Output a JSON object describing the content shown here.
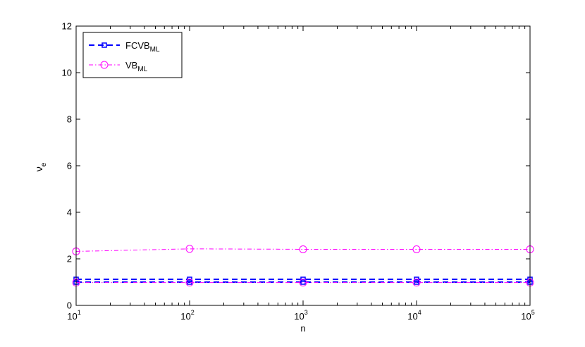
{
  "chart_data": {
    "type": "line",
    "x_scale": "log",
    "xlabel": "n",
    "ylabel": {
      "main": "ν",
      "sub": "e"
    },
    "xlim": [
      10,
      100000
    ],
    "ylim": [
      0,
      12
    ],
    "x_ticks": [
      {
        "base": "10",
        "exp": "1",
        "value": 10
      },
      {
        "base": "10",
        "exp": "2",
        "value": 100
      },
      {
        "base": "10",
        "exp": "3",
        "value": 1000
      },
      {
        "base": "10",
        "exp": "4",
        "value": 10000
      },
      {
        "base": "10",
        "exp": "5",
        "value": 100000
      }
    ],
    "y_ticks": [
      "0",
      "2",
      "4",
      "6",
      "8",
      "10",
      "12"
    ],
    "y_tick_values": [
      0,
      2,
      4,
      6,
      8,
      10,
      12
    ],
    "grid": false,
    "legend_position": "top-left",
    "x": [
      10,
      100,
      1000,
      10000,
      100000
    ],
    "series": [
      {
        "name": "FCVB",
        "name_sub": "ML",
        "color": "#0000ff",
        "line": "dashed",
        "marker": "square",
        "values": [
          1.12,
          1.12,
          1.12,
          1.12,
          1.12
        ]
      },
      {
        "name": "VB",
        "name_sub": "ML",
        "color": "#ff00ff",
        "line": "dashdot",
        "marker": "circle",
        "values": [
          2.32,
          2.43,
          2.41,
          2.41,
          2.41
        ]
      },
      {
        "color": "#0000ff",
        "line": "dashed",
        "marker": "square",
        "values": [
          1.0,
          1.0,
          1.0,
          1.0,
          1.0
        ]
      },
      {
        "color": "#ff00ff",
        "line": "dashdot",
        "marker": "circle",
        "values": [
          0.98,
          0.98,
          0.98,
          0.98,
          0.98
        ]
      }
    ]
  }
}
